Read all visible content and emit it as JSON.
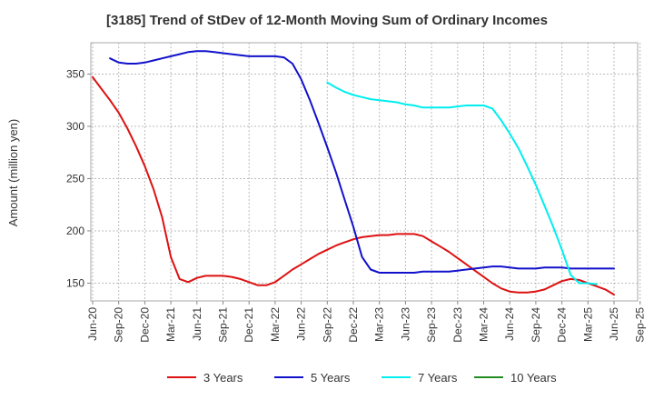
{
  "chart_data": {
    "type": "line",
    "title": "[3185]  Trend of StDev of 12-Month Moving Sum of Ordinary Incomes",
    "ylabel": "Amount (million yen)",
    "xlabel": "",
    "ylim": [
      133,
      380
    ],
    "yticks": [
      150,
      200,
      250,
      300,
      350
    ],
    "grid": true,
    "legend_position": "bottom",
    "x_tick_labels": [
      "Jun-20",
      "Sep-20",
      "Dec-20",
      "Mar-21",
      "Jun-21",
      "Sep-21",
      "Dec-21",
      "Mar-22",
      "Jun-22",
      "Sep-22",
      "Dec-22",
      "Mar-23",
      "Jun-23",
      "Sep-23",
      "Dec-23",
      "Mar-24",
      "Jun-24",
      "Sep-24",
      "Dec-24",
      "Mar-25",
      "Jun-25",
      "Sep-25"
    ],
    "x_months": [
      "2020-06",
      "2020-07",
      "2020-08",
      "2020-09",
      "2020-10",
      "2020-11",
      "2020-12",
      "2021-01",
      "2021-02",
      "2021-03",
      "2021-04",
      "2021-05",
      "2021-06",
      "2021-07",
      "2021-08",
      "2021-09",
      "2021-10",
      "2021-11",
      "2021-12",
      "2022-01",
      "2022-02",
      "2022-03",
      "2022-04",
      "2022-05",
      "2022-06",
      "2022-07",
      "2022-08",
      "2022-09",
      "2022-10",
      "2022-11",
      "2022-12",
      "2023-01",
      "2023-02",
      "2023-03",
      "2023-04",
      "2023-05",
      "2023-06",
      "2023-07",
      "2023-08",
      "2023-09",
      "2023-10",
      "2023-11",
      "2023-12",
      "2024-01",
      "2024-02",
      "2024-03",
      "2024-04",
      "2024-05",
      "2024-06",
      "2024-07",
      "2024-08",
      "2024-09",
      "2024-10",
      "2024-11",
      "2024-12",
      "2025-01",
      "2025-02",
      "2025-03",
      "2025-04",
      "2025-05",
      "2025-06"
    ],
    "series": [
      {
        "name": "3 Years",
        "color": "#dd1111",
        "values": [
          347,
          336,
          325,
          313,
          298,
          281,
          262,
          240,
          213,
          175,
          154,
          151,
          155,
          157,
          157,
          157,
          156,
          154,
          151,
          148,
          148,
          151,
          157,
          163,
          168,
          173,
          178,
          182,
          186,
          189,
          192,
          194,
          195,
          196,
          196,
          197,
          197,
          197,
          195,
          190,
          185,
          180,
          174,
          168,
          162,
          156,
          150,
          145,
          142,
          141,
          141,
          142,
          144,
          148,
          152,
          154,
          153,
          150,
          147,
          144,
          139
        ]
      },
      {
        "name": "5 Years",
        "color": "#1111cc",
        "values": [
          null,
          null,
          365,
          361,
          360,
          360,
          361,
          363,
          365,
          367,
          369,
          371,
          372,
          372,
          371,
          370,
          369,
          368,
          367,
          367,
          367,
          367,
          366,
          360,
          345,
          325,
          303,
          280,
          256,
          230,
          204,
          175,
          163,
          160,
          160,
          160,
          160,
          160,
          161,
          161,
          161,
          161,
          162,
          163,
          164,
          165,
          166,
          166,
          165,
          164,
          164,
          164,
          165,
          165,
          165,
          164,
          164,
          164,
          164,
          164,
          164
        ]
      },
      {
        "name": "7 Years",
        "color": "#00eeee",
        "values": [
          null,
          null,
          null,
          null,
          null,
          null,
          null,
          null,
          null,
          null,
          null,
          null,
          null,
          null,
          null,
          null,
          null,
          null,
          null,
          null,
          null,
          null,
          null,
          null,
          null,
          null,
          null,
          342,
          337,
          333,
          330,
          328,
          326,
          325,
          324,
          323,
          321,
          320,
          318,
          318,
          318,
          318,
          319,
          320,
          320,
          320,
          317,
          306,
          293,
          279,
          262,
          244,
          224,
          204,
          182,
          158,
          150,
          150,
          149,
          null,
          null
        ]
      },
      {
        "name": "10 Years",
        "color": "#228b22",
        "values": []
      }
    ]
  }
}
